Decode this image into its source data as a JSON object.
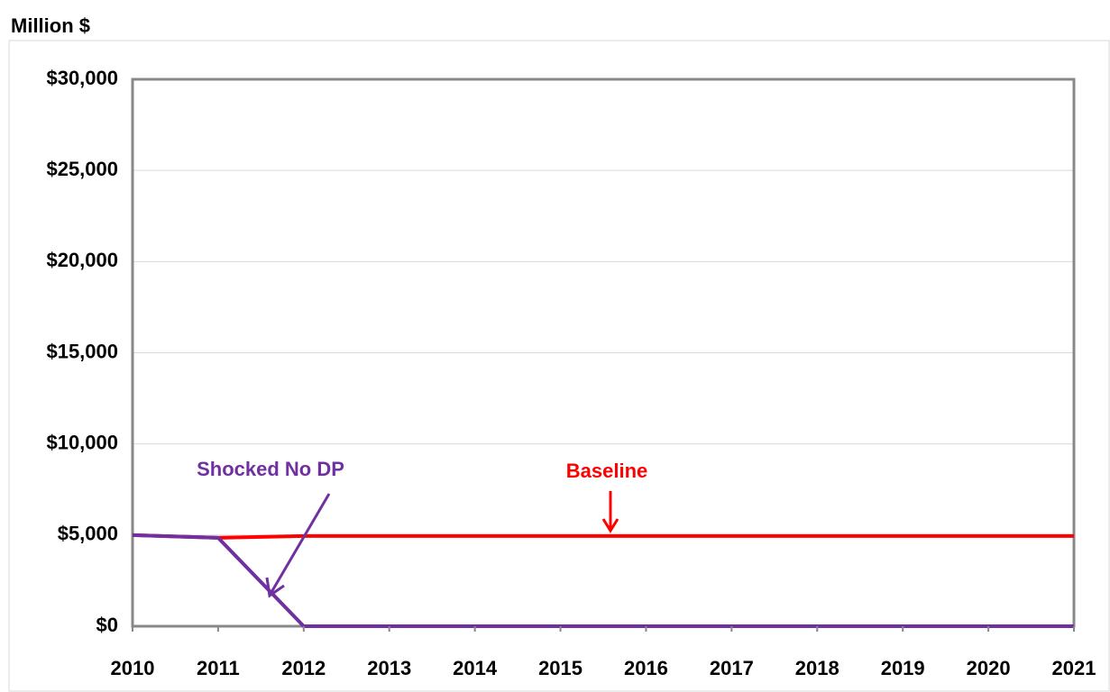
{
  "chart_data": {
    "type": "line",
    "y_label": "Million $",
    "x": [
      2010,
      2011,
      2012,
      2013,
      2014,
      2015,
      2016,
      2017,
      2018,
      2019,
      2020,
      2021
    ],
    "series": [
      {
        "name": "Baseline",
        "color": "#ff0000",
        "values": [
          5000,
          4850,
          4950,
          4950,
          4950,
          4950,
          4950,
          4950,
          4950,
          4950,
          4950,
          4950
        ]
      },
      {
        "name": "Shocked No DP",
        "color": "#7030a0",
        "values": [
          5000,
          4850,
          0,
          0,
          0,
          0,
          0,
          0,
          0,
          0,
          0,
          0
        ]
      }
    ],
    "xlim": [
      2010,
      2021
    ],
    "xticks": [
      2010,
      2011,
      2012,
      2013,
      2014,
      2015,
      2016,
      2017,
      2018,
      2019,
      2020,
      2021
    ],
    "ylim": [
      0,
      30000
    ],
    "yticks": [
      {
        "value": 0,
        "label": "$0"
      },
      {
        "value": 5000,
        "label": "$5,000"
      },
      {
        "value": 10000,
        "label": "$10,000"
      },
      {
        "value": 15000,
        "label": "$15,000"
      },
      {
        "value": 20000,
        "label": "$20,000"
      },
      {
        "value": 25000,
        "label": "$25,000"
      },
      {
        "value": 30000,
        "label": "$30,000"
      }
    ],
    "grid": true
  }
}
